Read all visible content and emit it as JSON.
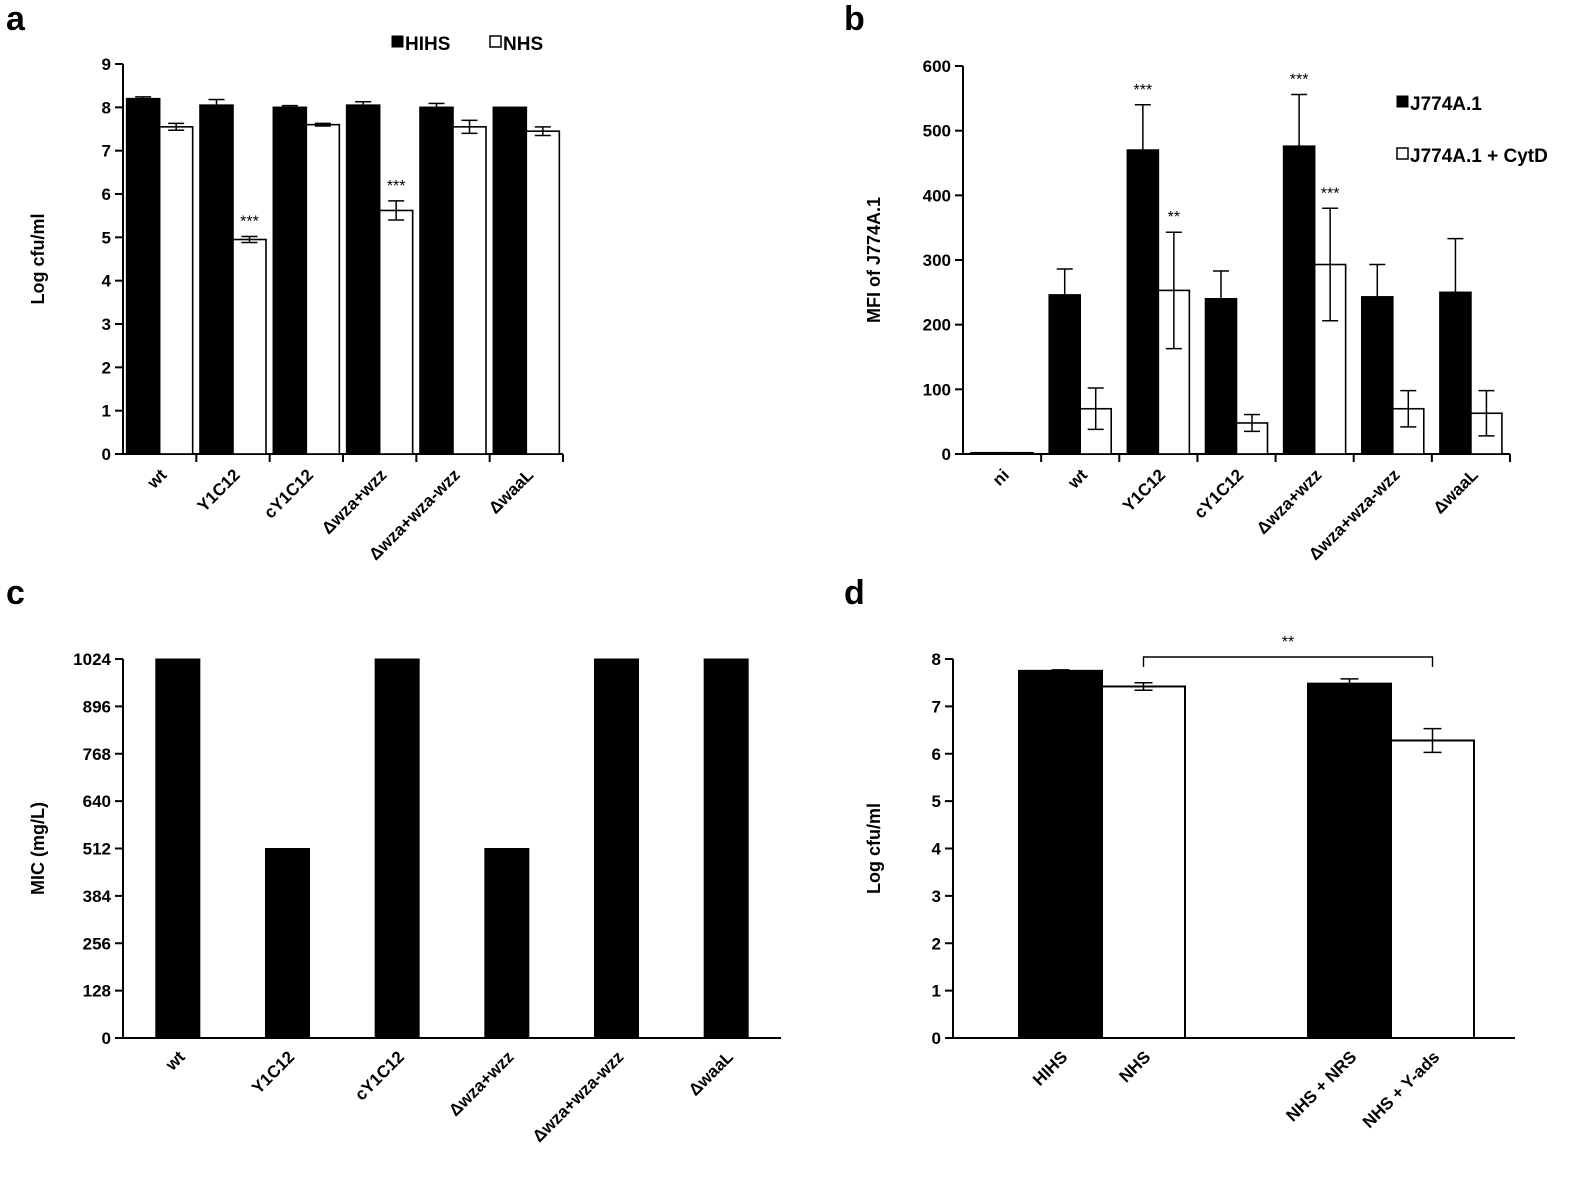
{
  "figure": {
    "panels": [
      "a",
      "b",
      "c",
      "d"
    ]
  },
  "chart_data": [
    {
      "id": "a",
      "type": "bar",
      "ylabel": "Log cfu/ml",
      "ylim": [
        0,
        9
      ],
      "yticks": [
        0,
        1,
        2,
        3,
        4,
        5,
        6,
        7,
        8,
        9
      ],
      "categories": [
        "wt",
        "Y1C12",
        "cY1C12",
        "Δwza+wzz",
        "Δwza+wza-wzz",
        "ΔwaaL"
      ],
      "legend_placement": "top-center",
      "series": [
        {
          "name": "HIHS",
          "fill": "#000000",
          "values": [
            8.2,
            8.05,
            8.0,
            8.05,
            8.0,
            8.0
          ],
          "errors": [
            0.04,
            0.13,
            0.04,
            0.08,
            0.09,
            0.0
          ],
          "sig": [
            "",
            "",
            "",
            "",
            "",
            ""
          ]
        },
        {
          "name": "NHS",
          "fill": "#ffffff",
          "values": [
            7.55,
            4.95,
            7.6,
            5.62,
            7.55,
            7.45
          ],
          "errors": [
            0.08,
            0.07,
            0.03,
            0.22,
            0.15,
            0.1
          ],
          "sig": [
            "",
            "***",
            "",
            "***",
            "",
            ""
          ]
        }
      ]
    },
    {
      "id": "b",
      "type": "bar",
      "ylabel": "MFI of J774A.1",
      "ylim": [
        0,
        600
      ],
      "yticks": [
        0,
        100,
        200,
        300,
        400,
        500,
        600
      ],
      "categories": [
        "ni",
        "wt",
        "Y1C12",
        "cY1C12",
        "Δwza+wzz",
        "Δwza+wza-wzz",
        "ΔwaaL"
      ],
      "legend_placement": "top-right",
      "series": [
        {
          "name": "J774A.1",
          "fill": "#000000",
          "values": [
            2,
            246,
            470,
            240,
            476,
            243,
            250
          ],
          "errors": [
            0,
            40,
            70,
            43,
            80,
            50,
            83
          ],
          "sig": [
            "",
            "",
            "***",
            "",
            "***",
            "",
            ""
          ]
        },
        {
          "name": "J774A.1 + CytD",
          "fill": "#ffffff",
          "values": [
            2,
            70,
            253,
            48,
            293,
            70,
            63
          ],
          "errors": [
            0,
            32,
            90,
            13,
            87,
            28,
            35
          ],
          "sig": [
            "",
            "",
            "**",
            "",
            "***",
            "",
            ""
          ]
        }
      ]
    },
    {
      "id": "c",
      "type": "bar",
      "ylabel": "MIC (mg/L)",
      "ylim": [
        0,
        1024
      ],
      "yticks": [
        0,
        128,
        256,
        384,
        512,
        640,
        768,
        896,
        1024
      ],
      "categories": [
        "wt",
        "Y1C12",
        "cY1C12",
        "Δwza+wzz",
        "Δwza+wza-wzz",
        "ΔwaaL"
      ],
      "series": [
        {
          "name": "MIC",
          "fill": "#000000",
          "values": [
            1024,
            512,
            1024,
            512,
            1024,
            1024
          ]
        }
      ]
    },
    {
      "id": "d",
      "type": "bar",
      "ylabel": "Log cfu/ml",
      "ylim": [
        0,
        8
      ],
      "yticks": [
        0,
        1,
        2,
        3,
        4,
        5,
        6,
        7,
        8
      ],
      "groups": [
        {
          "bars": [
            {
              "label": "HIHS",
              "fill": "#000000",
              "value": 7.75,
              "error": 0.02
            },
            {
              "label": "NHS",
              "fill": "#ffffff",
              "value": 7.42,
              "error": 0.08
            }
          ]
        },
        {
          "bars": [
            {
              "label": "NHS + NRS",
              "fill": "#000000",
              "value": 7.48,
              "error": 0.1
            },
            {
              "label": "NHS + Y-ads",
              "fill": "#ffffff",
              "value": 6.28,
              "error": 0.25
            }
          ]
        }
      ],
      "bracket": {
        "from": "NHS",
        "to": "NHS + Y-ads",
        "label": "**"
      }
    }
  ]
}
